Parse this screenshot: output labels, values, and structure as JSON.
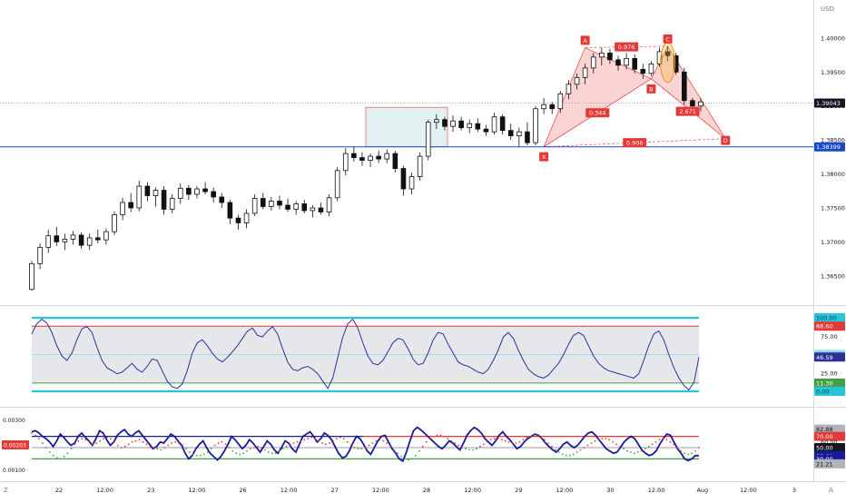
{
  "chart_data": [
    {
      "type": "candlestick",
      "panel": "price",
      "currency": "USD",
      "y_ticks": [
        "1.40000",
        "1.39500",
        "1.39000",
        "1.38500",
        "1.38000",
        "1.37500",
        "1.37000",
        "1.36500"
      ],
      "ylim": [
        1.3615,
        1.4048
      ],
      "last_price_label": "1.39043",
      "last_price": 1.39043,
      "line_label": "1.38399",
      "line_price": 1.38399,
      "ohlc": [
        [
          1.363,
          1.3672,
          1.3628,
          1.3668
        ],
        [
          1.3668,
          1.3698,
          1.366,
          1.3692
        ],
        [
          1.3692,
          1.3718,
          1.3684,
          1.3709
        ],
        [
          1.3709,
          1.3722,
          1.3694,
          1.37
        ],
        [
          1.37,
          1.3712,
          1.3688,
          1.3704
        ],
        [
          1.3704,
          1.3716,
          1.3696,
          1.371
        ],
        [
          1.371,
          1.3714,
          1.369,
          1.3695
        ],
        [
          1.3695,
          1.3712,
          1.3688,
          1.3706
        ],
        [
          1.3706,
          1.3718,
          1.3698,
          1.3703
        ],
        [
          1.3703,
          1.372,
          1.3696,
          1.3715
        ],
        [
          1.3715,
          1.3745,
          1.371,
          1.374
        ],
        [
          1.374,
          1.3765,
          1.3732,
          1.3758
        ],
        [
          1.3758,
          1.3772,
          1.3744,
          1.375
        ],
        [
          1.375,
          1.379,
          1.3745,
          1.3782
        ],
        [
          1.3782,
          1.3788,
          1.376,
          1.3768
        ],
        [
          1.3768,
          1.378,
          1.3752,
          1.3776
        ],
        [
          1.3776,
          1.3782,
          1.374,
          1.3748
        ],
        [
          1.3748,
          1.377,
          1.3742,
          1.3764
        ],
        [
          1.3764,
          1.3786,
          1.3756,
          1.3779
        ],
        [
          1.3779,
          1.3784,
          1.3762,
          1.377
        ],
        [
          1.377,
          1.3782,
          1.3764,
          1.3778
        ],
        [
          1.3778,
          1.3788,
          1.377,
          1.3774
        ],
        [
          1.3774,
          1.378,
          1.3758,
          1.3766
        ],
        [
          1.3766,
          1.3772,
          1.375,
          1.3758
        ],
        [
          1.3758,
          1.3762,
          1.3726,
          1.3735
        ],
        [
          1.3735,
          1.374,
          1.3718,
          1.3728
        ],
        [
          1.3728,
          1.3748,
          1.372,
          1.3742
        ],
        [
          1.3742,
          1.377,
          1.3738,
          1.3764
        ],
        [
          1.3764,
          1.3772,
          1.3748,
          1.3752
        ],
        [
          1.3752,
          1.3766,
          1.3746,
          1.376
        ],
        [
          1.376,
          1.3768,
          1.3748,
          1.3754
        ],
        [
          1.3754,
          1.3764,
          1.3744,
          1.3748
        ],
        [
          1.3748,
          1.376,
          1.374,
          1.3756
        ],
        [
          1.3756,
          1.3762,
          1.3742,
          1.3746
        ],
        [
          1.3746,
          1.3754,
          1.3736,
          1.375
        ],
        [
          1.375,
          1.3758,
          1.374,
          1.3744
        ],
        [
          1.3744,
          1.377,
          1.3738,
          1.3765
        ],
        [
          1.3765,
          1.381,
          1.376,
          1.3805
        ],
        [
          1.3805,
          1.3838,
          1.3798,
          1.383
        ],
        [
          1.383,
          1.384,
          1.3818,
          1.3824
        ],
        [
          1.3824,
          1.3832,
          1.3812,
          1.382
        ],
        [
          1.382,
          1.383,
          1.381,
          1.3826
        ],
        [
          1.3826,
          1.3834,
          1.3816,
          1.3822
        ],
        [
          1.3822,
          1.3836,
          1.3816,
          1.383
        ],
        [
          1.383,
          1.3834,
          1.3802,
          1.3808
        ],
        [
          1.3808,
          1.3812,
          1.3768,
          1.3778
        ],
        [
          1.3778,
          1.3802,
          1.377,
          1.3796
        ],
        [
          1.3796,
          1.3832,
          1.379,
          1.3826
        ],
        [
          1.3826,
          1.388,
          1.382,
          1.3876
        ],
        [
          1.3876,
          1.3888,
          1.3866,
          1.388
        ],
        [
          1.388,
          1.3884,
          1.3864,
          1.387
        ],
        [
          1.387,
          1.3886,
          1.3862,
          1.3878
        ],
        [
          1.3878,
          1.3884,
          1.3864,
          1.3868
        ],
        [
          1.3868,
          1.388,
          1.386,
          1.3874
        ],
        [
          1.3874,
          1.3882,
          1.3862,
          1.3866
        ],
        [
          1.3866,
          1.3872,
          1.3856,
          1.3862
        ],
        [
          1.3862,
          1.389,
          1.3858,
          1.3884
        ],
        [
          1.3884,
          1.3888,
          1.3858,
          1.3864
        ],
        [
          1.3864,
          1.3874,
          1.385,
          1.3856
        ],
        [
          1.3856,
          1.3868,
          1.384,
          1.3862
        ],
        [
          1.3862,
          1.3876,
          1.3842,
          1.3846
        ],
        [
          1.3846,
          1.39,
          1.3842,
          1.3896
        ],
        [
          1.3896,
          1.3912,
          1.3888,
          1.3902
        ],
        [
          1.3902,
          1.3906,
          1.3888,
          1.3896
        ],
        [
          1.3896,
          1.3922,
          1.389,
          1.3918
        ],
        [
          1.3918,
          1.3938,
          1.391,
          1.3932
        ],
        [
          1.3932,
          1.3948,
          1.3924,
          1.3942
        ],
        [
          1.3942,
          1.3962,
          1.3932,
          1.3956
        ],
        [
          1.3956,
          1.3978,
          1.3948,
          1.3972
        ],
        [
          1.3972,
          1.3986,
          1.396,
          1.3978
        ],
        [
          1.3978,
          1.3984,
          1.3962,
          1.3968
        ],
        [
          1.3968,
          1.3974,
          1.3952,
          1.396
        ],
        [
          1.396,
          1.3978,
          1.3954,
          1.397
        ],
        [
          1.397,
          1.3976,
          1.3948,
          1.3954
        ],
        [
          1.3954,
          1.3962,
          1.394,
          1.3948
        ],
        [
          1.3948,
          1.3966,
          1.3944,
          1.3962
        ],
        [
          1.3962,
          1.3986,
          1.3958,
          1.398
        ],
        [
          1.398,
          1.3988,
          1.3966,
          1.3974
        ],
        [
          1.3974,
          1.3978,
          1.3946,
          1.395
        ],
        [
          1.395,
          1.3956,
          1.3902,
          1.3908
        ],
        [
          1.3908,
          1.3912,
          1.3896,
          1.39
        ],
        [
          1.39,
          1.3912,
          1.3892,
          1.3906
        ]
      ],
      "pattern": {
        "points": [
          {
            "label": "X",
            "i": 62,
            "price": 1.384
          },
          {
            "label": "A",
            "i": 67,
            "price": 1.3986
          },
          {
            "label": "B",
            "i": 75,
            "price": 1.394
          },
          {
            "label": "C",
            "i": 77,
            "price": 1.3988
          },
          {
            "label": "D",
            "i": 84,
            "price": 1.3852
          }
        ],
        "ratios": [
          "0.344",
          "0.976",
          "2.671",
          "0.906"
        ]
      },
      "x_labels": [
        "22",
        "12:00",
        "23",
        "12:00",
        "26",
        "12:00",
        "27",
        "12:00",
        "28",
        "12:00",
        "29",
        "12:00",
        "30",
        "12:00",
        "Aug",
        "12:00",
        "3"
      ]
    },
    {
      "type": "line",
      "panel": "rsi",
      "ylim": [
        0,
        100
      ],
      "y_ticks": [
        "100.00",
        "88.60",
        "75.00",
        "50.00",
        "46.59",
        "25.00",
        "11.30",
        "0.00"
      ],
      "levels": {
        "upper_band": 100,
        "overbought": 88.6,
        "mid": 50,
        "oversold": 11.3,
        "lower_band": 0
      },
      "values": [
        78,
        92,
        98,
        93,
        80,
        62,
        48,
        42,
        52,
        70,
        85,
        88,
        80,
        60,
        42,
        32,
        28,
        24,
        26,
        32,
        38,
        30,
        26,
        34,
        44,
        42,
        28,
        14,
        6,
        4,
        10,
        28,
        52,
        66,
        70,
        62,
        52,
        44,
        40,
        46,
        54,
        62,
        72,
        82,
        86,
        76,
        74,
        82,
        88,
        78,
        58,
        40,
        30,
        28,
        32,
        34,
        30,
        24,
        14,
        4,
        18,
        46,
        74,
        92,
        98,
        86,
        66,
        48,
        38,
        36,
        42,
        54,
        66,
        72,
        70,
        58,
        44,
        36,
        38,
        52,
        70,
        80,
        78,
        64,
        52,
        40,
        36,
        34,
        30,
        26,
        24,
        30,
        42,
        56,
        74,
        80,
        72,
        56,
        42,
        30,
        24,
        20,
        18,
        22,
        30,
        38,
        50,
        64,
        76,
        80,
        76,
        62,
        48,
        38,
        32,
        28,
        26,
        24,
        22,
        20,
        18,
        24,
        42,
        62,
        78,
        82,
        70,
        50,
        32,
        18,
        8,
        2,
        12,
        46.59
      ],
      "last_value_label": "46.59"
    },
    {
      "type": "line",
      "panel": "indicator",
      "ylim": [
        0,
        100
      ],
      "y_ticks": [
        "82.88",
        "70.00",
        "60.00",
        "50.00",
        "35.69",
        "30.00",
        "21.21"
      ],
      "left_ticks": [
        "0.00300",
        "0.00203",
        "0.00100"
      ],
      "left_label": "0.00203",
      "levels": {
        "upper": 70,
        "mid": 50,
        "lower": 30
      },
      "line_values": [
        78,
        80,
        76,
        70,
        66,
        60,
        52,
        62,
        74,
        68,
        60,
        54,
        58,
        70,
        76,
        68,
        62,
        54,
        66,
        80,
        76,
        64,
        54,
        60,
        72,
        78,
        82,
        74,
        70,
        76,
        80,
        72,
        64,
        56,
        48,
        52,
        60,
        58,
        66,
        74,
        70,
        62,
        54,
        40,
        30,
        36,
        48,
        56,
        62,
        50,
        40,
        34,
        28,
        34,
        44,
        56,
        70,
        64,
        56,
        48,
        54,
        64,
        58,
        50,
        42,
        52,
        62,
        56,
        46,
        40,
        50,
        62,
        58,
        48,
        42,
        56,
        70,
        74,
        78,
        70,
        60,
        66,
        76,
        72,
        64,
        52,
        40,
        32,
        34,
        44,
        58,
        70,
        66,
        56,
        44,
        38,
        50,
        62,
        70,
        72,
        60,
        48,
        40,
        30,
        26,
        42,
        62,
        80,
        86,
        82,
        76,
        70,
        64,
        58,
        52,
        48,
        54,
        62,
        58,
        52,
        46,
        58,
        72,
        80,
        86,
        82,
        76,
        66,
        60,
        54,
        62,
        72,
        78,
        70,
        64,
        56,
        48,
        52,
        60,
        66,
        70,
        74,
        72,
        66,
        58,
        52,
        46,
        42,
        48,
        56,
        60,
        54,
        50,
        54,
        62,
        70,
        76,
        78,
        72,
        64,
        56,
        48,
        44,
        40,
        42,
        50,
        60,
        66,
        70,
        66,
        56,
        46,
        40,
        36,
        38,
        44,
        56,
        66,
        74,
        72,
        60,
        48,
        40,
        30,
        27,
        30,
        36,
        35.69
      ],
      "dot_values": [
        76,
        72,
        66,
        58,
        50,
        42,
        36,
        32,
        30,
        34,
        40,
        48,
        56,
        62,
        66,
        64,
        60,
        56,
        58,
        62,
        66,
        68,
        66,
        60,
        54,
        50,
        52,
        56,
        60,
        62,
        64,
        60,
        56,
        52,
        50,
        48,
        46,
        50,
        54,
        58,
        60,
        58,
        54,
        48,
        42,
        38,
        36,
        36,
        38,
        42,
        48,
        54,
        58,
        60,
        56,
        50,
        44,
        40,
        38,
        40,
        44,
        48,
        50,
        52,
        50,
        46,
        42,
        40,
        40,
        44,
        48,
        52,
        56,
        58,
        60,
        62,
        64,
        66,
        68,
        66,
        62,
        58,
        56,
        58,
        62,
        66,
        68,
        66,
        60,
        54,
        50,
        48,
        48,
        50,
        54,
        58,
        62,
        64,
        62,
        58,
        52,
        46,
        40,
        34,
        30,
        28,
        30,
        36,
        44,
        52,
        60,
        66,
        70,
        72,
        72,
        70,
        66,
        62,
        58,
        54,
        50,
        48,
        46,
        46,
        48,
        52,
        56,
        60,
        64,
        66,
        66,
        64,
        62,
        60,
        58,
        58,
        60,
        64,
        68,
        70,
        72,
        70,
        68,
        64,
        58,
        52,
        46,
        42,
        38,
        36,
        36,
        38,
        42,
        46,
        50,
        54,
        58,
        62,
        64,
        66,
        66,
        64,
        60,
        56,
        52,
        48,
        44,
        42,
        40,
        42,
        44,
        48,
        52,
        56,
        60,
        64,
        66,
        64,
        60,
        56,
        50,
        44,
        40,
        38,
        40,
        44,
        50
      ]
    }
  ],
  "time_axis": {
    "left_label": "Z",
    "right_label": "A"
  }
}
